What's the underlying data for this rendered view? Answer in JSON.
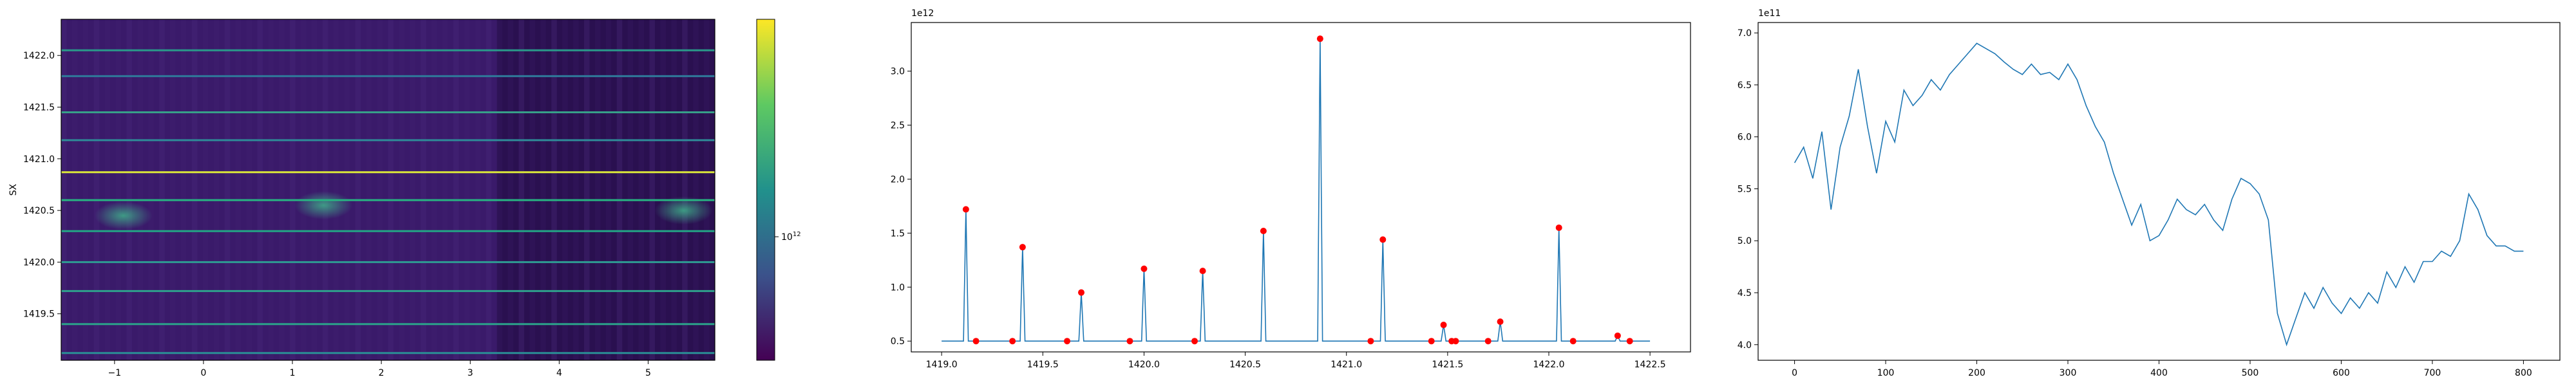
{
  "chart_data": [
    {
      "type": "heatmap",
      "title": "",
      "xlabel": "",
      "ylabel": "SX",
      "xlim": [
        -1.6,
        5.75
      ],
      "ylim": [
        1419.05,
        1422.35
      ],
      "xticks": [
        -1,
        0,
        1,
        2,
        3,
        4,
        5
      ],
      "xtick_labels": [
        "−1",
        "0",
        "1",
        "2",
        "3",
        "4",
        "5"
      ],
      "yticks": [
        1419.5,
        1420.0,
        1420.5,
        1421.0,
        1421.5,
        1422.0
      ],
      "ytick_labels": [
        "1419.5",
        "1420.0",
        "1420.5",
        "1421.0",
        "1421.5",
        "1422.0"
      ],
      "colormap": "viridis",
      "colorbar": {
        "scale": "log",
        "tick_label_base": "10",
        "tick_label_exp": "12"
      },
      "background_color": "#3a1a6a",
      "bands": [
        {
          "y": 1422.05,
          "color": "#2a9a8a"
        },
        {
          "y": 1421.8,
          "color": "#2f7a9a"
        },
        {
          "y": 1421.45,
          "color": "#37a089"
        },
        {
          "y": 1421.18,
          "color": "#2f8b98"
        },
        {
          "y": 1420.87,
          "color": "#d8e43a"
        },
        {
          "y": 1420.6,
          "color": "#28b482"
        },
        {
          "y": 1420.3,
          "color": "#23a585"
        },
        {
          "y": 1420.0,
          "color": "#2e9a92"
        },
        {
          "y": 1419.72,
          "color": "#2fa08c"
        },
        {
          "y": 1419.4,
          "color": "#2ba38a"
        },
        {
          "y": 1419.12,
          "color": "#2a8f95"
        }
      ],
      "blobs": [
        {
          "x": -0.9,
          "y": 1420.45,
          "color": "#2a9a8c"
        },
        {
          "x": 1.35,
          "y": 1420.55,
          "color": "#2a8f95"
        },
        {
          "x": 5.4,
          "y": 1420.5,
          "color": "#35a98a"
        }
      ],
      "dark_region": {
        "x_from": 3.3,
        "x_to": 5.75,
        "color": "#2a1050"
      }
    },
    {
      "type": "line",
      "title": "",
      "xlabel": "",
      "ylabel": "",
      "y_offset_label": "1e12",
      "xlim": [
        1418.85,
        1422.7
      ],
      "ylim": [
        0.4,
        3.45
      ],
      "xticks": [
        1419.0,
        1419.5,
        1420.0,
        1420.5,
        1421.0,
        1421.5,
        1422.0,
        1422.5
      ],
      "xtick_labels": [
        "1419.0",
        "1419.5",
        "1420.0",
        "1420.5",
        "1421.0",
        "1421.5",
        "1422.0",
        "1422.5"
      ],
      "yticks": [
        0.5,
        1.0,
        1.5,
        2.0,
        2.5,
        3.0
      ],
      "ytick_labels": [
        "0.5",
        "1.0",
        "1.5",
        "2.0",
        "2.5",
        "3.0"
      ],
      "baseline": 0.5,
      "x_range": [
        1419.0,
        1422.5
      ],
      "line_color": "#1f77b4",
      "marker_color": "#ff0000",
      "peaks": [
        {
          "x": 1419.12,
          "y": 1.72
        },
        {
          "x": 1419.4,
          "y": 1.37
        },
        {
          "x": 1419.69,
          "y": 0.95
        },
        {
          "x": 1420.0,
          "y": 1.17
        },
        {
          "x": 1420.29,
          "y": 1.15
        },
        {
          "x": 1420.59,
          "y": 1.52
        },
        {
          "x": 1420.87,
          "y": 3.3
        },
        {
          "x": 1421.18,
          "y": 1.44
        },
        {
          "x": 1421.48,
          "y": 0.65
        },
        {
          "x": 1421.76,
          "y": 0.68
        },
        {
          "x": 1422.05,
          "y": 1.55
        },
        {
          "x": 1422.34,
          "y": 0.55
        }
      ],
      "valley_markers": [
        {
          "x": 1419.17,
          "y": 0.5
        },
        {
          "x": 1419.35,
          "y": 0.5
        },
        {
          "x": 1419.62,
          "y": 0.5
        },
        {
          "x": 1419.93,
          "y": 0.5
        },
        {
          "x": 1420.25,
          "y": 0.5
        },
        {
          "x": 1421.12,
          "y": 0.5
        },
        {
          "x": 1421.42,
          "y": 0.5
        },
        {
          "x": 1421.52,
          "y": 0.5
        },
        {
          "x": 1421.54,
          "y": 0.5
        },
        {
          "x": 1421.7,
          "y": 0.5
        },
        {
          "x": 1422.12,
          "y": 0.5
        },
        {
          "x": 1422.4,
          "y": 0.5
        }
      ]
    },
    {
      "type": "line",
      "title": "",
      "xlabel": "",
      "ylabel": "",
      "y_offset_label": "1e11",
      "xlim": [
        -40,
        840
      ],
      "ylim": [
        3.85,
        7.1
      ],
      "xticks": [
        0,
        100,
        200,
        300,
        400,
        500,
        600,
        700,
        800
      ],
      "xtick_labels": [
        "0",
        "100",
        "200",
        "300",
        "400",
        "500",
        "600",
        "700",
        "800"
      ],
      "yticks": [
        4.0,
        4.5,
        5.0,
        5.5,
        6.0,
        6.5,
        7.0
      ],
      "ytick_labels": [
        "4.0",
        "4.5",
        "5.0",
        "5.5",
        "6.0",
        "6.5",
        "7.0"
      ],
      "line_color": "#1f77b4",
      "x": [
        0,
        10,
        20,
        30,
        40,
        50,
        60,
        70,
        80,
        90,
        100,
        110,
        120,
        130,
        140,
        150,
        160,
        170,
        180,
        190,
        200,
        210,
        220,
        230,
        240,
        250,
        260,
        270,
        280,
        290,
        300,
        310,
        320,
        330,
        340,
        350,
        360,
        370,
        380,
        390,
        400,
        410,
        420,
        430,
        440,
        450,
        460,
        470,
        480,
        490,
        500,
        510,
        520,
        530,
        540,
        550,
        560,
        570,
        580,
        590,
        600,
        610,
        620,
        630,
        640,
        650,
        660,
        670,
        680,
        690,
        700,
        710,
        720,
        730,
        740,
        750,
        760,
        770,
        780,
        790,
        800
      ],
      "y": [
        5.75,
        5.9,
        5.6,
        6.05,
        5.3,
        5.9,
        6.2,
        6.65,
        6.1,
        5.65,
        6.15,
        5.95,
        6.45,
        6.3,
        6.4,
        6.55,
        6.45,
        6.6,
        6.7,
        6.8,
        6.9,
        6.85,
        6.8,
        6.72,
        6.65,
        6.6,
        6.7,
        6.6,
        6.62,
        6.55,
        6.7,
        6.55,
        6.3,
        6.1,
        5.95,
        5.65,
        5.4,
        5.15,
        5.35,
        5.0,
        5.05,
        5.2,
        5.4,
        5.3,
        5.25,
        5.35,
        5.2,
        5.1,
        5.4,
        5.6,
        5.55,
        5.45,
        5.2,
        4.3,
        4.0,
        4.25,
        4.5,
        4.35,
        4.55,
        4.4,
        4.3,
        4.45,
        4.35,
        4.5,
        4.4,
        4.7,
        4.55,
        4.75,
        4.6,
        4.8,
        4.8,
        4.9,
        4.85,
        5.0,
        5.45,
        5.3,
        5.05,
        4.95,
        4.95,
        4.9,
        4.9
      ]
    }
  ]
}
